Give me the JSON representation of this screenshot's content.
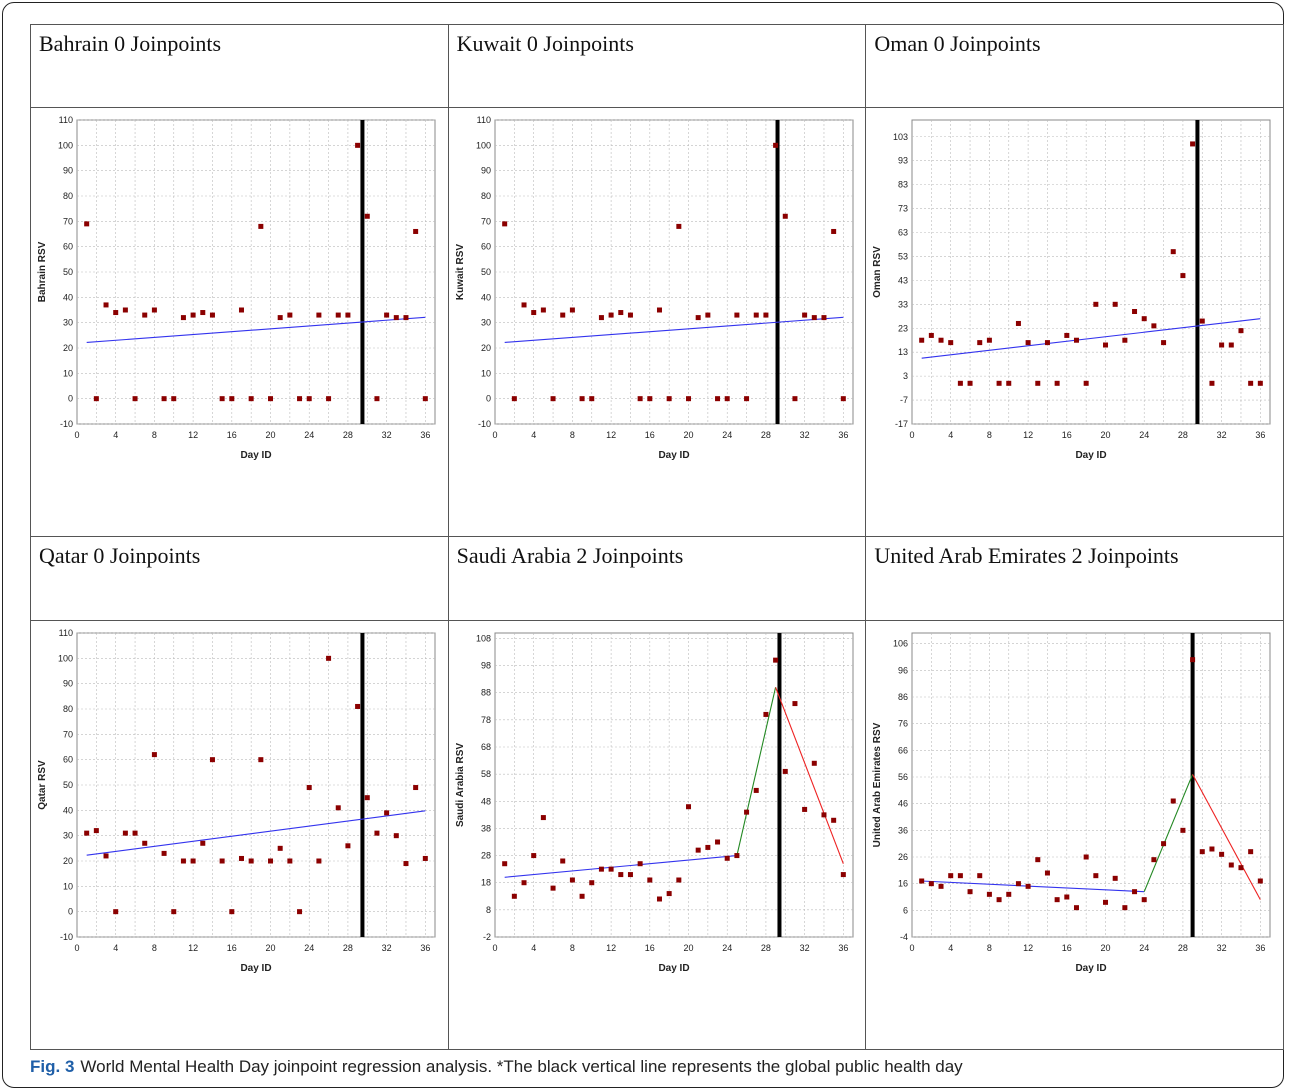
{
  "caption": {
    "label": "Fig. 3",
    "text": "World Mental Health Day joinpoint regression analysis. *The black vertical line represents the global public health day"
  },
  "colors": {
    "points": "#8b0000",
    "trend_1": "#3333ee",
    "trend_2": "#228822",
    "trend_3": "#ee2222",
    "event_line": "#000000",
    "grid": "#bbbbbb"
  },
  "chart_data": [
    {
      "type": "scatter",
      "title": "Bahrain 0 Joinpoints",
      "xlabel": "Day ID",
      "ylabel": "Bahrain RSV",
      "xlim": [
        0,
        37
      ],
      "ylim": [
        -10,
        110
      ],
      "xticks": [
        0,
        4,
        8,
        12,
        16,
        20,
        24,
        28,
        32,
        36
      ],
      "yticks": [
        -10,
        0,
        10,
        20,
        30,
        40,
        50,
        60,
        70,
        80,
        90,
        100,
        110
      ],
      "event_day": 29.5,
      "x": [
        1,
        2,
        3,
        4,
        5,
        6,
        7,
        8,
        9,
        10,
        11,
        12,
        13,
        14,
        15,
        16,
        17,
        18,
        19,
        20,
        21,
        22,
        23,
        24,
        25,
        26,
        27,
        28,
        29,
        30,
        31,
        32,
        33,
        34,
        35,
        36
      ],
      "y": [
        69,
        0,
        37,
        34,
        35,
        0,
        33,
        35,
        0,
        0,
        32,
        33,
        34,
        33,
        0,
        0,
        35,
        0,
        68,
        0,
        32,
        33,
        0,
        0,
        33,
        0,
        33,
        33,
        100,
        72,
        0,
        33,
        32,
        32,
        66,
        0
      ],
      "segments": [
        {
          "x": [
            1,
            36
          ],
          "y": [
            22.2,
            32.1
          ],
          "color_key": "trend_1"
        }
      ]
    },
    {
      "type": "scatter",
      "title": "Kuwait 0 Joinpoints",
      "xlabel": "Day ID",
      "ylabel": "Kuwait RSV",
      "xlim": [
        0,
        37
      ],
      "ylim": [
        -10,
        110
      ],
      "xticks": [
        0,
        4,
        8,
        12,
        16,
        20,
        24,
        28,
        32,
        36
      ],
      "yticks": [
        -10,
        0,
        10,
        20,
        30,
        40,
        50,
        60,
        70,
        80,
        90,
        100,
        110
      ],
      "event_day": 29.2,
      "x": [
        1,
        2,
        3,
        4,
        5,
        6,
        7,
        8,
        9,
        10,
        11,
        12,
        13,
        14,
        15,
        16,
        17,
        18,
        19,
        20,
        21,
        22,
        23,
        24,
        25,
        26,
        27,
        28,
        29,
        30,
        31,
        32,
        33,
        34,
        35,
        36
      ],
      "y": [
        69,
        0,
        37,
        34,
        35,
        0,
        33,
        35,
        0,
        0,
        32,
        33,
        34,
        33,
        0,
        0,
        35,
        0,
        68,
        0,
        32,
        33,
        0,
        0,
        33,
        0,
        33,
        33,
        100,
        72,
        0,
        33,
        32,
        32,
        66,
        0
      ],
      "segments": [
        {
          "x": [
            1,
            36
          ],
          "y": [
            22.2,
            32.1
          ],
          "color_key": "trend_1"
        }
      ]
    },
    {
      "type": "scatter",
      "title": "Oman 0 Joinpoints",
      "xlabel": "Day ID",
      "ylabel": "Oman RSV",
      "xlim": [
        0,
        37
      ],
      "ylim": [
        -17,
        110
      ],
      "xticks": [
        0,
        4,
        8,
        12,
        16,
        20,
        24,
        28,
        32,
        36
      ],
      "yticks": [
        -17,
        -7,
        3,
        13,
        23,
        33,
        43,
        53,
        63,
        73,
        83,
        93,
        103
      ],
      "event_day": 29.5,
      "x": [
        1,
        2,
        3,
        4,
        5,
        6,
        7,
        8,
        9,
        10,
        11,
        12,
        13,
        14,
        15,
        16,
        17,
        18,
        19,
        20,
        21,
        22,
        23,
        24,
        25,
        26,
        27,
        28,
        29,
        30,
        31,
        32,
        33,
        34,
        35,
        36
      ],
      "y": [
        18,
        20,
        18,
        17,
        0,
        0,
        17,
        18,
        0,
        0,
        25,
        17,
        0,
        17,
        0,
        20,
        18,
        0,
        33,
        16,
        33,
        18,
        30,
        27,
        24,
        17,
        55,
        45,
        100,
        26,
        0,
        16,
        16,
        22,
        0,
        0
      ],
      "segments": [
        {
          "x": [
            1,
            36
          ],
          "y": [
            10.5,
            27.0
          ],
          "color_key": "trend_1"
        }
      ]
    },
    {
      "type": "scatter",
      "title": "Qatar 0 Joinpoints",
      "xlabel": "Day ID",
      "ylabel": "Qatar RSV",
      "xlim": [
        0,
        37
      ],
      "ylim": [
        -10,
        110
      ],
      "xticks": [
        0,
        4,
        8,
        12,
        16,
        20,
        24,
        28,
        32,
        36
      ],
      "yticks": [
        -10,
        0,
        10,
        20,
        30,
        40,
        50,
        60,
        70,
        80,
        90,
        100,
        110
      ],
      "event_day": 29.5,
      "x": [
        1,
        2,
        3,
        4,
        5,
        6,
        7,
        8,
        9,
        10,
        11,
        12,
        13,
        14,
        15,
        16,
        17,
        18,
        19,
        20,
        21,
        22,
        23,
        24,
        25,
        26,
        27,
        28,
        29,
        30,
        31,
        32,
        33,
        34,
        35,
        36
      ],
      "y": [
        31,
        32,
        22,
        0,
        31,
        31,
        27,
        62,
        23,
        0,
        20,
        20,
        27,
        60,
        20,
        0,
        21,
        20,
        60,
        20,
        25,
        20,
        0,
        49,
        20,
        100,
        41,
        26,
        81,
        45,
        31,
        39,
        30,
        19,
        49,
        21
      ],
      "segments": [
        {
          "x": [
            1,
            36
          ],
          "y": [
            22.3,
            39.8
          ],
          "color_key": "trend_1"
        }
      ]
    },
    {
      "type": "scatter",
      "title": "Saudi Arabia 2 Joinpoints",
      "xlabel": "Day ID",
      "ylabel": "Saudi Arabia RSV",
      "xlim": [
        0,
        37
      ],
      "ylim": [
        -2,
        110
      ],
      "xticks": [
        0,
        4,
        8,
        12,
        16,
        20,
        24,
        28,
        32,
        36
      ],
      "yticks": [
        -2,
        8,
        18,
        28,
        38,
        48,
        58,
        68,
        78,
        88,
        98,
        108
      ],
      "event_day": 29.4,
      "x": [
        1,
        2,
        3,
        4,
        5,
        6,
        7,
        8,
        9,
        10,
        11,
        12,
        13,
        14,
        15,
        16,
        17,
        18,
        19,
        20,
        21,
        22,
        23,
        24,
        25,
        26,
        27,
        28,
        29,
        30,
        31,
        32,
        33,
        34,
        35,
        36
      ],
      "y": [
        25,
        13,
        18,
        28,
        42,
        16,
        26,
        19,
        13,
        18,
        23,
        23,
        21,
        21,
        25,
        19,
        12,
        14,
        19,
        46,
        30,
        31,
        33,
        27,
        28,
        44,
        52,
        80,
        100,
        59,
        84,
        45,
        62,
        43,
        41,
        21
      ],
      "segments": [
        {
          "x": [
            1,
            25
          ],
          "y": [
            20,
            28
          ],
          "color_key": "trend_1"
        },
        {
          "x": [
            25,
            29
          ],
          "y": [
            28,
            90
          ],
          "color_key": "trend_2"
        },
        {
          "x": [
            29,
            36
          ],
          "y": [
            90,
            25
          ],
          "color_key": "trend_3"
        }
      ]
    },
    {
      "type": "scatter",
      "title": "United Arab Emirates 2 Joinpoints",
      "xlabel": "Day ID",
      "ylabel": "United Arab Emirates RSV",
      "xlim": [
        0,
        37
      ],
      "ylim": [
        -4,
        110
      ],
      "xticks": [
        0,
        4,
        8,
        12,
        16,
        20,
        24,
        28,
        32,
        36
      ],
      "yticks": [
        -4,
        6,
        16,
        26,
        36,
        46,
        56,
        66,
        76,
        86,
        96,
        106
      ],
      "event_day": 29,
      "x": [
        1,
        2,
        3,
        4,
        5,
        6,
        7,
        8,
        9,
        10,
        11,
        12,
        13,
        14,
        15,
        16,
        17,
        18,
        19,
        20,
        21,
        22,
        23,
        24,
        25,
        26,
        27,
        28,
        29,
        30,
        31,
        32,
        33,
        34,
        35,
        36
      ],
      "y": [
        17,
        16,
        15,
        19,
        19,
        13,
        19,
        12,
        10,
        12,
        16,
        15,
        25,
        20,
        10,
        11,
        7,
        26,
        19,
        9,
        18,
        7,
        13,
        10,
        25,
        31,
        47,
        36,
        100,
        28,
        29,
        27,
        23,
        22,
        28,
        17
      ],
      "segments": [
        {
          "x": [
            1,
            24
          ],
          "y": [
            17,
            13
          ],
          "color_key": "trend_1"
        },
        {
          "x": [
            24,
            29
          ],
          "y": [
            13,
            57
          ],
          "color_key": "trend_2"
        },
        {
          "x": [
            29,
            36
          ],
          "y": [
            57,
            10
          ],
          "color_key": "trend_3"
        }
      ]
    }
  ]
}
